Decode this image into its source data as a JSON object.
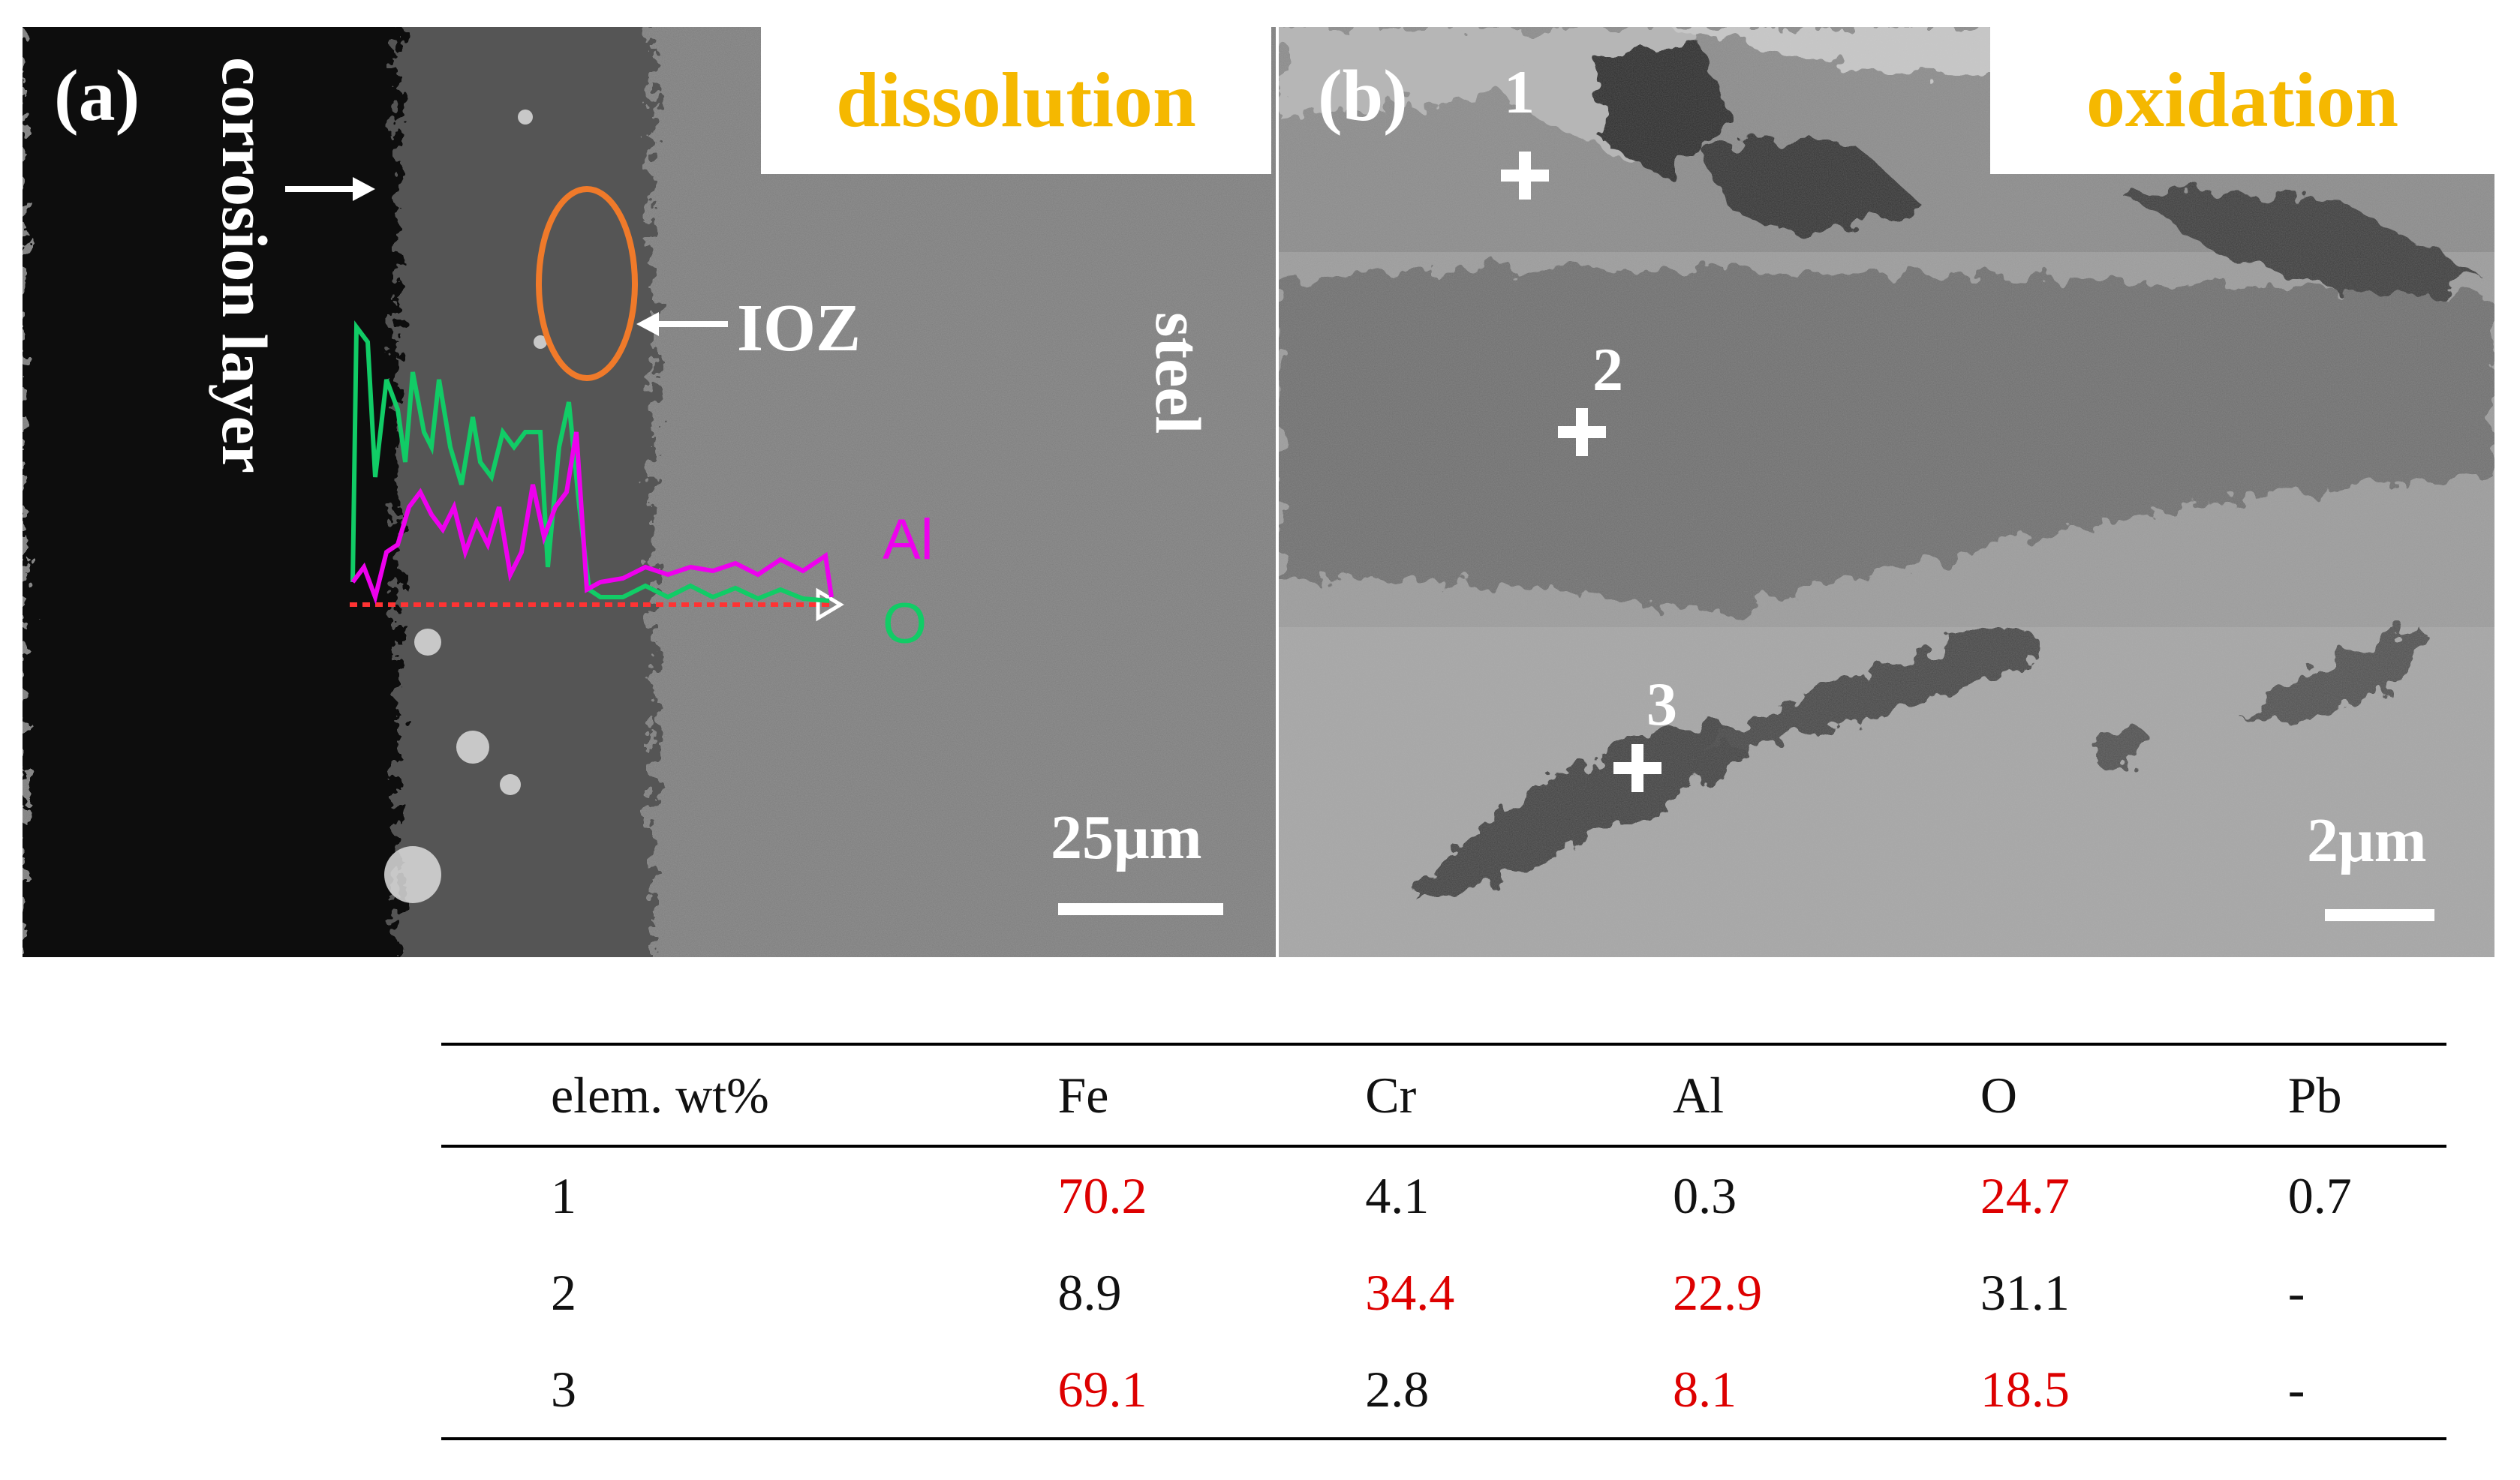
{
  "panel_a": {
    "letter": "(a)",
    "title": "dissolution",
    "corrosion_label": "corrosion layer",
    "ioz_label": "IOZ",
    "steel_label": "steel",
    "al_label": "Al",
    "o_label": "O",
    "scale_label": "25μm",
    "colors": {
      "al": "#ee00ee",
      "o": "#11cc66",
      "title": "#f5b800",
      "ioz_ellipse": "#f07a2a"
    }
  },
  "panel_b": {
    "letter": "(b)",
    "title": "oxidation",
    "points": [
      "1",
      "2",
      "3"
    ],
    "scale_label": "2μm"
  },
  "table": {
    "headers": [
      "elem. wt%",
      "Fe",
      "Cr",
      "Al",
      "O",
      "Pb"
    ],
    "rows": [
      {
        "cells": [
          "1",
          "70.2",
          "4.1",
          "0.3",
          "24.7",
          "0.7"
        ],
        "highlight": [
          false,
          true,
          false,
          false,
          true,
          false
        ]
      },
      {
        "cells": [
          "2",
          "8.9",
          "34.4",
          "22.9",
          "31.1",
          "-"
        ],
        "highlight": [
          false,
          false,
          true,
          true,
          false,
          false
        ]
      },
      {
        "cells": [
          "3",
          "69.1",
          "2.8",
          "8.1",
          "18.5",
          "-"
        ],
        "highlight": [
          false,
          true,
          false,
          true,
          true,
          false
        ]
      }
    ],
    "highlight_color": "#dd0000"
  }
}
